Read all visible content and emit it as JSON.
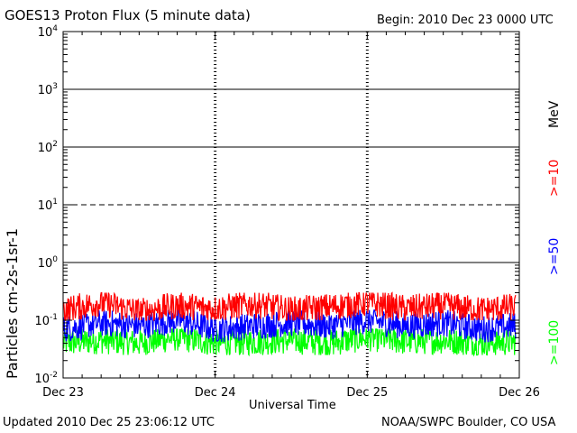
{
  "header": {
    "title": "GOES13 Proton Flux (5 minute data)",
    "begin": "Begin: 2010 Dec 23 0000 UTC"
  },
  "footer": {
    "updated": "Updated 2010 Dec 25 23:06:12 UTC",
    "source": "NOAA/SWPC Boulder, CO USA"
  },
  "legend": {
    "unit": "MeV",
    "series_labels": [
      ">=10",
      ">=50",
      ">=100"
    ]
  },
  "chart_data": {
    "type": "line",
    "title": "GOES13 Proton Flux (5 minute data)",
    "xlabel": "Universal Time",
    "ylabel": "Particles cm-2s-1sr-1",
    "y_scale": "log",
    "ylim": [
      0.01,
      10000
    ],
    "y_tick_labels": [
      {
        "value": 0.01,
        "base": "10",
        "exp": "-2"
      },
      {
        "value": 0.1,
        "base": "10",
        "exp": "-1"
      },
      {
        "value": 1,
        "base": "10",
        "exp": "0"
      },
      {
        "value": 10,
        "base": "10",
        "exp": "1"
      },
      {
        "value": 100,
        "base": "10",
        "exp": "2"
      },
      {
        "value": 1000,
        "base": "10",
        "exp": "3"
      },
      {
        "value": 10000,
        "base": "10",
        "exp": "4"
      }
    ],
    "x_tick_labels": [
      "Dec 23",
      "Dec 24",
      "Dec 25",
      "Dec 26"
    ],
    "xlim_hours": [
      0,
      72
    ],
    "reference_lines": [
      {
        "value": 10,
        "style": "dashed"
      },
      {
        "value": 1,
        "style": "solid"
      },
      {
        "value": 100,
        "style": "solid"
      },
      {
        "value": 1000,
        "style": "solid"
      }
    ],
    "series": [
      {
        "name": ">=10",
        "color": "#ff0000",
        "approx_range": [
          0.1,
          0.3
        ],
        "sample_hours": [
          0,
          6,
          12,
          18,
          24,
          30,
          36,
          42,
          48,
          54,
          60,
          66,
          71
        ],
        "sample_values": [
          0.15,
          0.2,
          0.14,
          0.18,
          0.16,
          0.19,
          0.15,
          0.17,
          0.2,
          0.16,
          0.18,
          0.15,
          0.17
        ]
      },
      {
        "name": ">=50",
        "color": "#0000ff",
        "approx_range": [
          0.04,
          0.15
        ],
        "sample_hours": [
          0,
          6,
          12,
          18,
          24,
          30,
          36,
          42,
          48,
          54,
          60,
          66,
          71
        ],
        "sample_values": [
          0.07,
          0.09,
          0.08,
          0.1,
          0.07,
          0.08,
          0.09,
          0.08,
          0.1,
          0.08,
          0.09,
          0.07,
          0.08
        ]
      },
      {
        "name": ">=100",
        "color": "#00ff00",
        "approx_range": [
          0.025,
          0.07
        ],
        "sample_hours": [
          0,
          6,
          12,
          18,
          24,
          30,
          36,
          42,
          48,
          54,
          60,
          66,
          71
        ],
        "sample_values": [
          0.04,
          0.045,
          0.04,
          0.05,
          0.04,
          0.042,
          0.045,
          0.04,
          0.05,
          0.043,
          0.045,
          0.04,
          0.042
        ]
      }
    ]
  }
}
